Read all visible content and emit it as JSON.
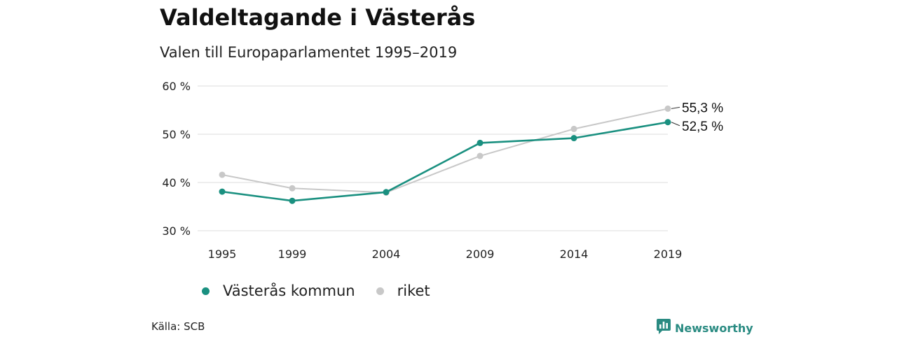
{
  "title": "Valdeltagande i Västerås",
  "subtitle": "Valen till Europaparlamentet 1995–2019",
  "source": "Källa: SCB",
  "brand": "Newsworthy",
  "colors": {
    "kommun": "#1a9080",
    "riket": "#c8c8c8",
    "grid": "#dcdcdc",
    "brand": "#2a8b82"
  },
  "icons": {
    "brand_logo": "bar-chart-speech-bubble-icon"
  },
  "chart_data": {
    "type": "line",
    "x": [
      1995,
      1999,
      2004,
      2009,
      2014,
      2019
    ],
    "x_tick_labels": [
      "1995",
      "1999",
      "2004",
      "2009",
      "2014",
      "2019"
    ],
    "y_ticks": [
      30,
      40,
      50,
      60
    ],
    "y_tick_labels": [
      "30 %",
      "40 %",
      "50 %",
      "60 %"
    ],
    "ylim": [
      30,
      60
    ],
    "grid": "horizontal",
    "legend_position": "bottom-left",
    "series": [
      {
        "name": "Västerås kommun",
        "color": "#1a9080",
        "values": [
          38.1,
          36.2,
          38.0,
          48.2,
          49.2,
          52.5
        ]
      },
      {
        "name": "riket",
        "color": "#c8c8c8",
        "values": [
          41.6,
          38.8,
          37.9,
          45.5,
          51.1,
          55.3
        ]
      }
    ],
    "end_labels": {
      "riket": "55,3 %",
      "kommun": "52,5 %"
    }
  }
}
